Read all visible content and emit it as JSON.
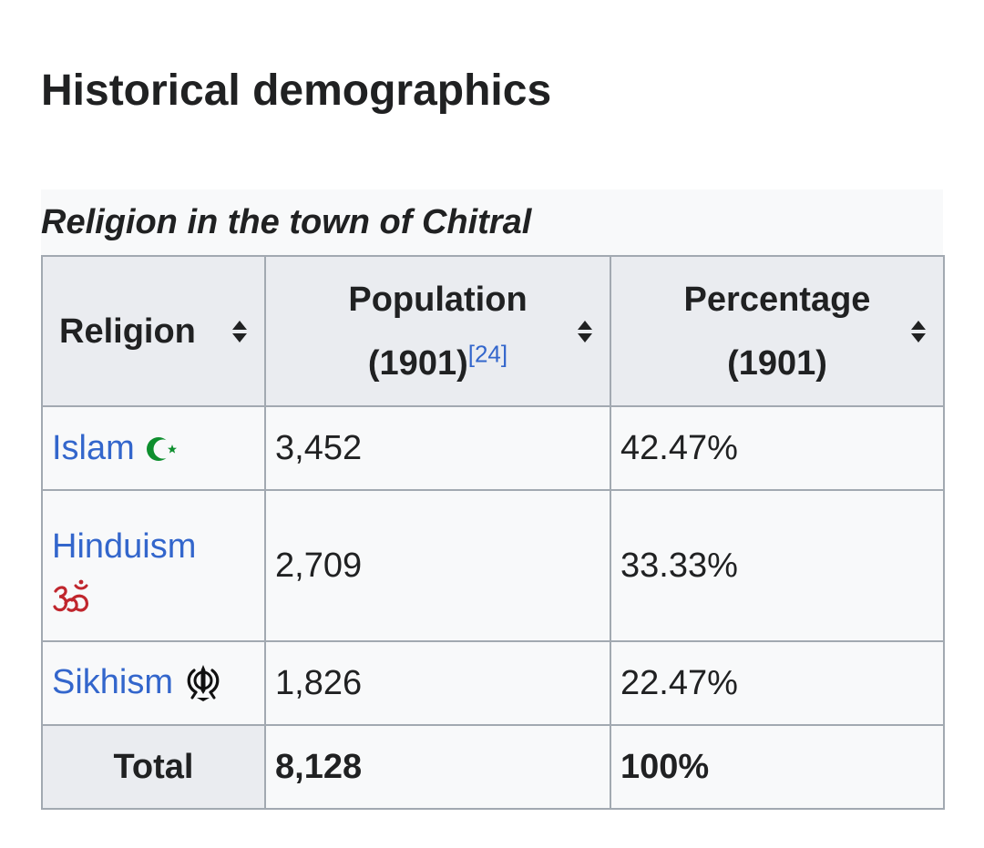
{
  "page": {
    "title": "Historical demographics"
  },
  "table": {
    "caption": "Religion in the town of Chitral",
    "headers": {
      "religion": "Religion",
      "population_line1": "Population",
      "population_line2": "(1901)",
      "population_ref": "[24]",
      "percentage_line1": "Percentage",
      "percentage_line2": "(1901)"
    },
    "rows": [
      {
        "religion": "Islam",
        "population": "3,452",
        "percentage": "42.47%",
        "icon": "crescent-star-icon"
      },
      {
        "religion": "Hinduism",
        "population": "2,709",
        "percentage": "33.33%",
        "icon": "om-icon"
      },
      {
        "religion": "Sikhism",
        "population": "1,826",
        "percentage": "22.47%",
        "icon": "khanda-icon"
      }
    ],
    "total": {
      "label": "Total",
      "population": "8,128",
      "percentage": "100%"
    }
  },
  "colors": {
    "link": "#3366cc",
    "header_bg": "#eaecf0",
    "cell_bg": "#f8f9fa",
    "border": "#a2a9b1",
    "islam_icon": "#0e8f2e",
    "om_icon": "#c0262d",
    "khanda_icon": "#111111"
  }
}
